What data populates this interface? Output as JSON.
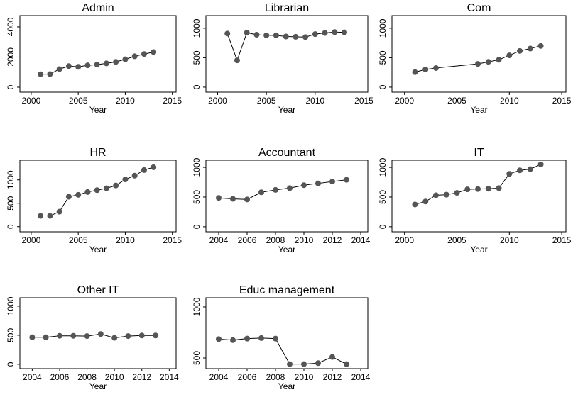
{
  "chart_data": [
    {
      "type": "line",
      "title": "Admin",
      "x_label": "Year",
      "color": "#555555",
      "x": [
        2001,
        2002,
        2003,
        2004,
        2005,
        2006,
        2007,
        2008,
        2009,
        2010,
        2011,
        2012,
        2013
      ],
      "values": [
        860,
        870,
        1200,
        1400,
        1350,
        1450,
        1500,
        1580,
        1680,
        1850,
        2050,
        2200,
        2330
      ],
      "xlim": [
        1998.8,
        2015.4
      ],
      "xticks": [
        2000,
        2005,
        2010,
        2015
      ],
      "ylim": [
        -330,
        4750
      ],
      "yticks": [
        0,
        2000,
        4000
      ]
    },
    {
      "type": "line",
      "title": "Librarian",
      "x_label": "Year",
      "color": "#555555",
      "x": [
        2001,
        2002,
        2003,
        2004,
        2005,
        2006,
        2007,
        2008,
        2009,
        2010,
        2011,
        2012,
        2013
      ],
      "values": [
        910,
        455,
        925,
        890,
        880,
        880,
        860,
        855,
        850,
        900,
        920,
        935,
        930
      ],
      "xlim": [
        1998.8,
        2015.4
      ],
      "xticks": [
        2000,
        2005,
        2010,
        2015
      ],
      "ylim": [
        -85,
        1215
      ],
      "yticks": [
        0,
        500,
        1000
      ]
    },
    {
      "type": "line",
      "title": "Com",
      "x_label": "Year",
      "color": "#555555",
      "x": [
        2001,
        2002,
        2003,
        2007,
        2008,
        2009,
        2010,
        2011,
        2012,
        2013
      ],
      "values": [
        255,
        300,
        325,
        395,
        430,
        465,
        540,
        615,
        655,
        700
      ],
      "xlim": [
        1998.8,
        2015.4
      ],
      "xticks": [
        2000,
        2005,
        2010,
        2015
      ],
      "ylim": [
        -85,
        1215
      ],
      "yticks": [
        0,
        500,
        1000
      ]
    },
    {
      "type": "line",
      "title": "HR",
      "x_label": "Year",
      "color": "#555555",
      "x": [
        2001,
        2002,
        2003,
        2004,
        2005,
        2006,
        2007,
        2008,
        2009,
        2010,
        2011,
        2012,
        2013
      ],
      "values": [
        230,
        230,
        320,
        640,
        680,
        740,
        780,
        820,
        880,
        1010,
        1090,
        1210,
        1270
      ],
      "xlim": [
        1998.8,
        2015.4
      ],
      "xticks": [
        2000,
        2005,
        2010,
        2015
      ],
      "ylim": [
        -110,
        1420
      ],
      "yticks": [
        0,
        500,
        1000
      ]
    },
    {
      "type": "line",
      "title": "Accountant",
      "x_label": "Year",
      "color": "#555555",
      "x": [
        2004,
        2005,
        2006,
        2007,
        2008,
        2009,
        2010,
        2011,
        2012,
        2013
      ],
      "values": [
        485,
        470,
        460,
        580,
        620,
        650,
        700,
        730,
        760,
        790
      ],
      "xlim": [
        2003.1,
        2014.5
      ],
      "xticks": [
        2004,
        2006,
        2008,
        2010,
        2012,
        2014
      ],
      "ylim": [
        -85,
        1120
      ],
      "yticks": [
        0,
        500,
        1000
      ]
    },
    {
      "type": "line",
      "title": "IT",
      "x_label": "Year",
      "color": "#555555",
      "x": [
        2001,
        2002,
        2003,
        2004,
        2005,
        2006,
        2007,
        2008,
        2009,
        2010,
        2011,
        2012,
        2013
      ],
      "values": [
        375,
        425,
        530,
        540,
        570,
        630,
        635,
        640,
        650,
        890,
        950,
        970,
        1050
      ],
      "xlim": [
        1998.8,
        2015.4
      ],
      "xticks": [
        2000,
        2005,
        2010,
        2015
      ],
      "ylim": [
        -85,
        1120
      ],
      "yticks": [
        0,
        500,
        1000
      ]
    },
    {
      "type": "line",
      "title": "Other IT",
      "x_label": "Year",
      "color": "#555555",
      "x": [
        2004,
        2005,
        2006,
        2007,
        2008,
        2009,
        2010,
        2011,
        2012,
        2013
      ],
      "values": [
        465,
        465,
        490,
        490,
        485,
        520,
        455,
        485,
        495,
        495
      ],
      "xlim": [
        2003.1,
        2014.5
      ],
      "xticks": [
        2004,
        2006,
        2008,
        2010,
        2012,
        2014
      ],
      "ylim": [
        -75,
        1145
      ],
      "yticks": [
        0,
        500,
        1000
      ]
    },
    {
      "type": "line",
      "title": "Educ management",
      "x_label": "Year",
      "color": "#555555",
      "x": [
        2004,
        2005,
        2006,
        2007,
        2008,
        2009,
        2010,
        2011,
        2012,
        2013
      ],
      "values": [
        685,
        675,
        690,
        695,
        690,
        440,
        440,
        450,
        510,
        440
      ],
      "xlim": [
        2003.1,
        2014.5
      ],
      "xticks": [
        2004,
        2006,
        2008,
        2010,
        2012,
        2014
      ],
      "ylim": [
        396,
        1090
      ],
      "yticks": [
        500,
        1000
      ]
    }
  ]
}
